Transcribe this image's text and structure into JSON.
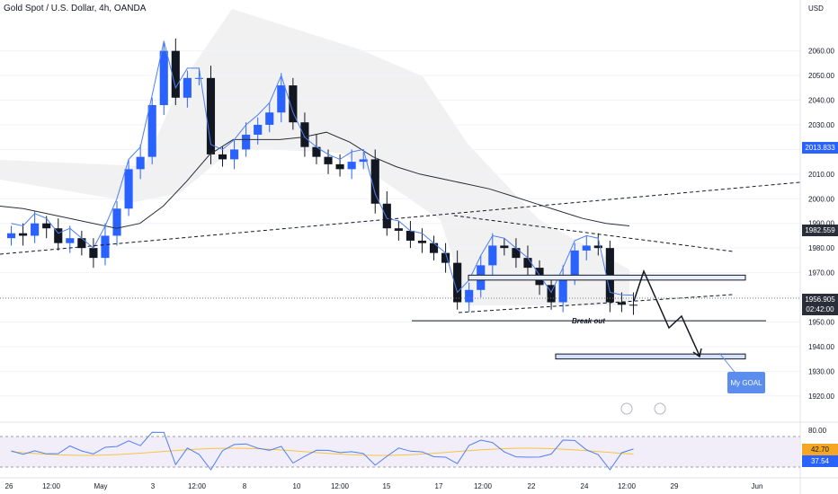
{
  "header": {
    "title": "Gold Spot / U.S. Dollar, 4h, OANDA"
  },
  "axis": {
    "currency_label": "USD"
  },
  "price_tags": {
    "upper": "2013.833",
    "level": "1982.559",
    "current": "1956.905",
    "countdown": "02:42:00"
  },
  "annotations": {
    "break_out": "Break out",
    "goal": "My GOAL"
  },
  "rsi": {
    "upper_label": "80.00",
    "value_a": "42.70",
    "value_b": "37.54"
  },
  "chart_data": {
    "type": "candlestick",
    "title": "Gold Spot / U.S. Dollar, 4h, OANDA",
    "ylabel": "USD",
    "ylim": [
      1913,
      2077
    ],
    "yticks": [
      2060,
      2050,
      2040,
      2030,
      2020,
      2010,
      2000,
      1990,
      1980,
      1970,
      1960,
      1950,
      1940,
      1930,
      1920
    ],
    "xtick_labels": [
      "26",
      "12:00",
      "May",
      "3",
      "12:00",
      "8",
      "10",
      "12:00",
      "15",
      "17",
      "12:00",
      "22",
      "24",
      "12:00",
      "29",
      "Jun"
    ],
    "close_series": [
      1986,
      1985,
      1990,
      1988,
      1982,
      1984,
      1980,
      1976,
      1985,
      1996,
      2012,
      2017,
      2038,
      2060,
      2041,
      2049,
      2049,
      2018,
      2016,
      2020,
      2026,
      2030,
      2035,
      2046,
      2031,
      2021,
      2017,
      2014,
      2012,
      2015,
      2016,
      1998,
      1988,
      1987,
      1983,
      1982,
      1978,
      1974,
      1958,
      1963,
      1973,
      1981,
      1980,
      1976,
      1972,
      1965,
      1958,
      1968,
      1979,
      1981,
      1980,
      1958,
      1957,
      1956.9
    ],
    "sma_series": [
      1997,
      1996,
      1994,
      1992,
      1990,
      1988,
      1990,
      1997,
      2007,
      2018,
      2024,
      2024,
      2024,
      2025,
      2027,
      2023,
      2017,
      2013,
      2010,
      2008,
      2006,
      2004,
      2001,
      1998,
      1995,
      1992,
      1990,
      1989
    ],
    "levels": {
      "resistance_zone": [
        1967,
        1969
      ],
      "breakout_line": 1950.5,
      "goal_zone": [
        1935,
        1937
      ]
    },
    "rsi_levels": {
      "upper": 80,
      "lower": 20
    },
    "rsi_values": {
      "value_a": 42.7,
      "value_b": 37.54
    }
  }
}
